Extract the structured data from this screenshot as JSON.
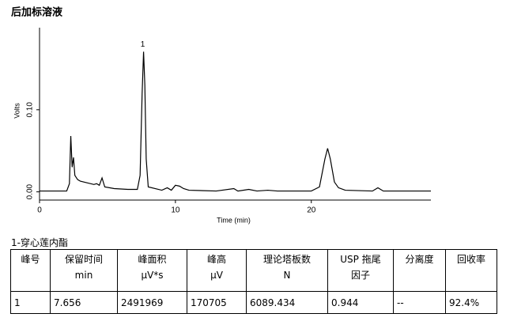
{
  "chart_data": {
    "type": "line",
    "title": "后加标溶液",
    "xlabel": "Time (min)",
    "ylabel": "Volts",
    "x": [
      0,
      2.0,
      2.2,
      2.3,
      2.4,
      2.5,
      2.6,
      2.8,
      3.0,
      3.5,
      4.0,
      4.2,
      4.4,
      4.6,
      4.8,
      5.5,
      6.5,
      7.2,
      7.4,
      7.55,
      7.656,
      7.75,
      7.85,
      8.0,
      9.0,
      9.4,
      9.7,
      10.0,
      10.3,
      10.6,
      11.0,
      13.0,
      14.3,
      14.6,
      15.4,
      16.0,
      16.8,
      17.5,
      20.0,
      20.6,
      21.0,
      21.2,
      21.4,
      21.7,
      22.0,
      22.5,
      24.5,
      24.9,
      25.3,
      28.8
    ],
    "values": [
      0.001,
      0.001,
      0.01,
      0.068,
      0.03,
      0.042,
      0.02,
      0.015,
      0.013,
      0.011,
      0.009,
      0.01,
      0.008,
      0.017,
      0.006,
      0.004,
      0.003,
      0.003,
      0.02,
      0.12,
      0.1707,
      0.13,
      0.04,
      0.006,
      0.002,
      0.005,
      0.002,
      0.008,
      0.007,
      0.004,
      0.002,
      0.001,
      0.004,
      0.001,
      0.003,
      0.001,
      0.002,
      0.001,
      0.001,
      0.006,
      0.04,
      0.053,
      0.04,
      0.012,
      0.005,
      0.002,
      0.001,
      0.005,
      0.001,
      0.001
    ],
    "color": "#000000",
    "xlim": [
      0,
      28.8
    ],
    "ylim": [
      -0.01,
      0.2
    ],
    "xticks": [
      0,
      10,
      20
    ],
    "yticks": [
      {
        "value": 0,
        "label": "0.00"
      },
      {
        "value": 0.1,
        "label": "0.10"
      }
    ],
    "annotations": [
      {
        "text": "1",
        "x": 7.656,
        "y": 0.1707
      }
    ]
  },
  "table": {
    "caption": "1-穿心莲内酯",
    "header": [
      [
        "峰号"
      ],
      [
        "保留时间",
        "min"
      ],
      [
        "峰面积",
        "µV*s"
      ],
      [
        "峰高",
        "µV"
      ],
      [
        "理论塔板数",
        "N"
      ],
      [
        "USP 拖尾",
        "因子"
      ],
      [
        "分离度"
      ],
      [
        "回收率"
      ]
    ],
    "rows": [
      [
        "1",
        "7.656",
        "2491969",
        "170705",
        "6089.434",
        "0.944",
        "--",
        "92.4%"
      ]
    ]
  }
}
